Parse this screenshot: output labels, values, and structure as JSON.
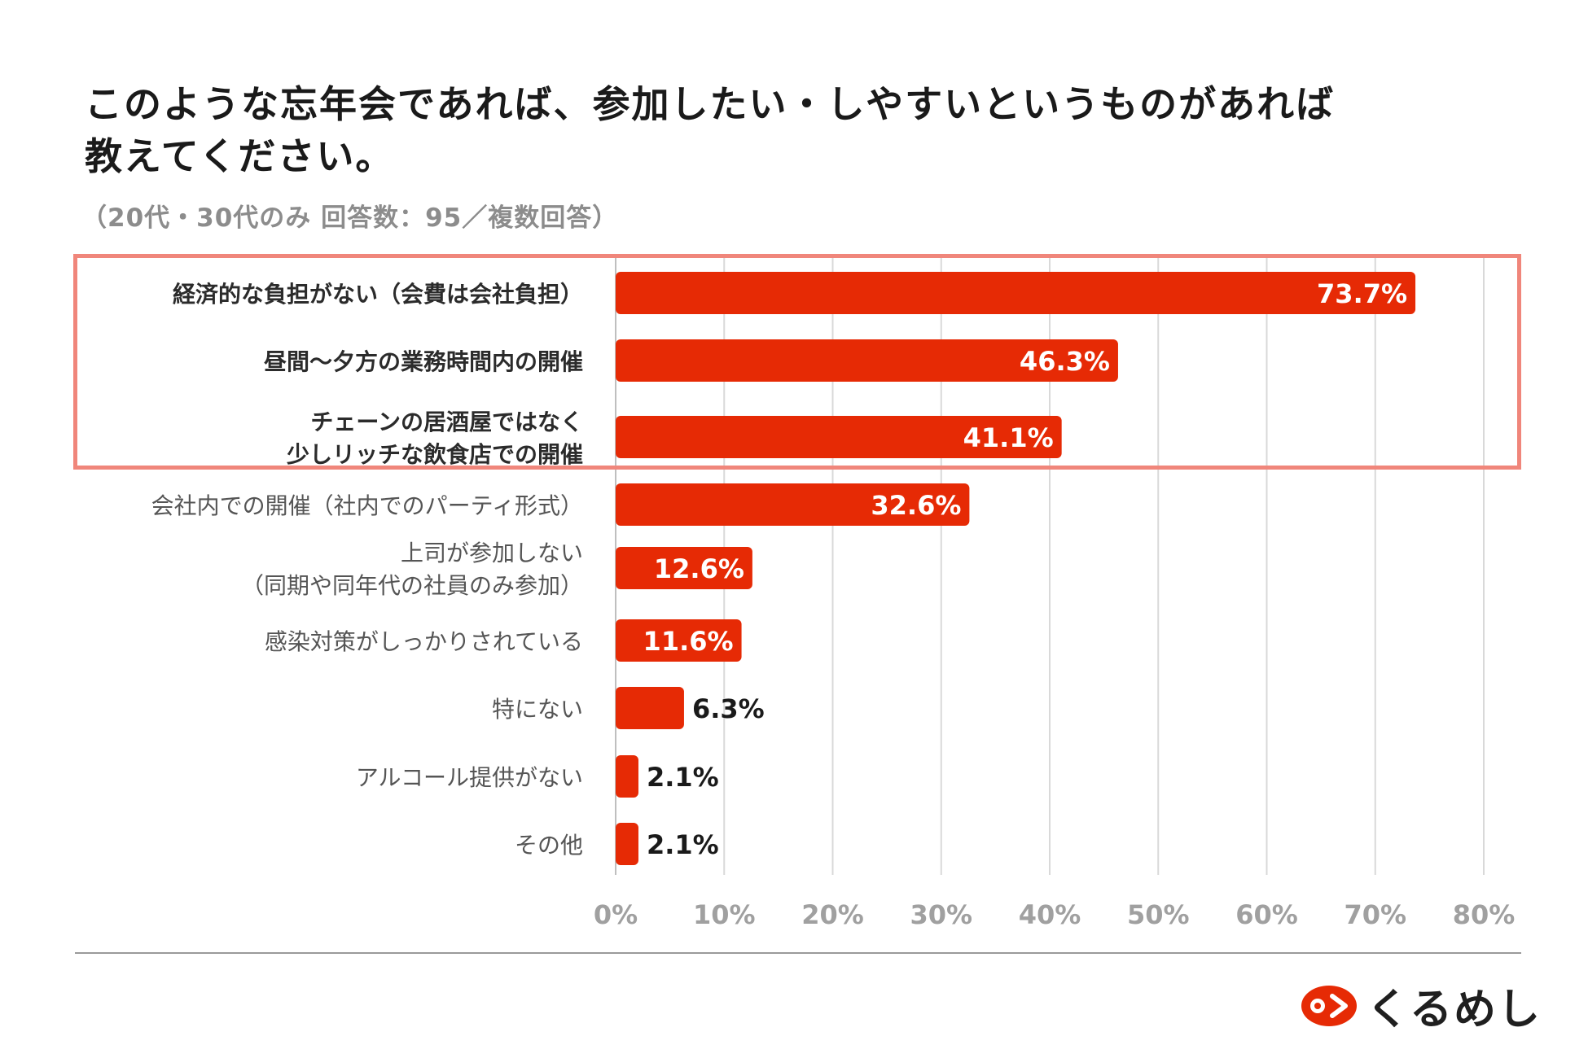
{
  "title_line1": "このような忘年会であれば、参加したい・しやすいというものがあれば",
  "title_line2": "教えてください。",
  "subtitle": "（20代・30代のみ 回答数：95／複数回答）",
  "brand": "くるめし",
  "colors": {
    "bar": "#e62a05",
    "highlight": "#f0867b",
    "grid": "#d9d9d9"
  },
  "chart_data": {
    "type": "bar",
    "orientation": "horizontal",
    "title": "このような忘年会であれば、参加したい・しやすいというものがあれば教えてください。",
    "categories": [
      "経済的な負担がない（会費は会社負担）",
      "昼間〜夕方の業務時間内の開催",
      "チェーンの居酒屋ではなく 少しリッチな飲食店での開催",
      "会社内での開催（社内でのパーティ形式）",
      "上司が参加しない （同期や同年代の社員のみ参加）",
      "感染対策がしっかりされている",
      "特にない",
      "アルコール提供がない",
      "その他"
    ],
    "label_lines": [
      [
        "経済的な負担がない（会費は会社負担）"
      ],
      [
        "昼間〜夕方の業務時間内の開催"
      ],
      [
        "チェーンの居酒屋ではなく",
        "少しリッチな飲食店での開催"
      ],
      [
        "会社内での開催（社内でのパーティ形式）"
      ],
      [
        "上司が参加しない",
        "（同期や同年代の社員のみ参加）"
      ],
      [
        "感染対策がしっかりされている"
      ],
      [
        "特にない"
      ],
      [
        "アルコール提供がない"
      ],
      [
        "その他"
      ]
    ],
    "values": [
      73.7,
      46.3,
      41.1,
      32.6,
      12.6,
      11.6,
      6.3,
      2.1,
      2.1
    ],
    "value_labels": [
      "73.7%",
      "46.3%",
      "41.1%",
      "32.6%",
      "12.6%",
      "11.6%",
      "6.3%",
      "2.1%",
      "2.1%"
    ],
    "highlighted": [
      true,
      true,
      true,
      false,
      false,
      false,
      false,
      false,
      false
    ],
    "xlim": [
      0,
      80
    ],
    "xticks": [
      0,
      10,
      20,
      30,
      40,
      50,
      60,
      70,
      80
    ],
    "xtick_labels": [
      "0%",
      "10%",
      "20%",
      "30%",
      "40%",
      "50%",
      "60%",
      "70%",
      "80%"
    ],
    "grid": true
  }
}
